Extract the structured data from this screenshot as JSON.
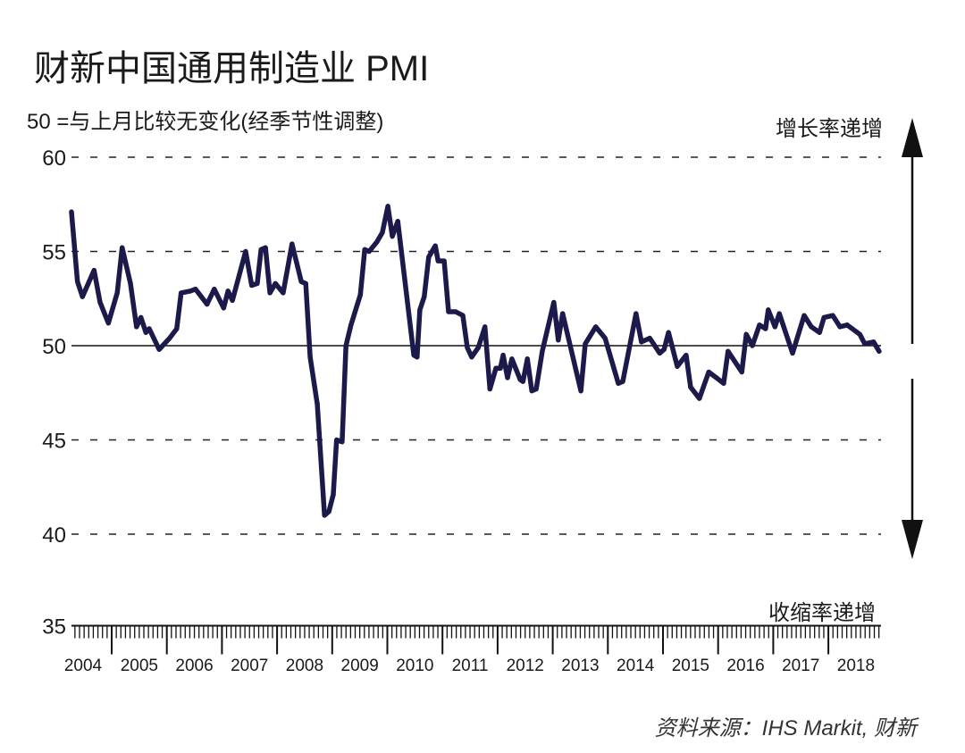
{
  "chart_data": {
    "type": "line",
    "title": "财新中国通用制造业 PMI",
    "subtitle": "50 =与上月比较无变化(经季节性调整)",
    "xlabel": "",
    "ylabel": "",
    "ylim": [
      35,
      60
    ],
    "yticks": [
      "60",
      "55",
      "50",
      "45",
      "40",
      "35"
    ],
    "ytick_values": [
      60,
      55,
      50,
      45,
      40,
      35
    ],
    "xlim": [
      2004,
      2019
    ],
    "xtick_labels": [
      "2004",
      "2005",
      "2006",
      "2007",
      "2008",
      "2009",
      "2010",
      "2011",
      "2012",
      "2013",
      "2014",
      "2015",
      "2016",
      "2017",
      "2018"
    ],
    "reference_line": 50,
    "grid": "dashed horizontal",
    "annotations": {
      "up": "增长率递增",
      "down": "收缩率递增"
    },
    "source": "资料来源：IHS Markit, 财新",
    "line_color": "#1c1a4a",
    "series": [
      {
        "name": "PMI",
        "x": [
          2004.27,
          2004.38,
          2004.47,
          2004.68,
          2004.79,
          2004.94,
          2005.1,
          2005.19,
          2005.34,
          2005.45,
          2005.53,
          2005.62,
          2005.68,
          2005.86,
          2006.05,
          2006.18,
          2006.26,
          2006.43,
          2006.52,
          2006.73,
          2006.86,
          2007.03,
          2007.11,
          2007.19,
          2007.43,
          2007.54,
          2007.64,
          2007.71,
          2007.79,
          2007.87,
          2007.97,
          2008.11,
          2008.27,
          2008.44,
          2008.52,
          2008.6,
          2008.73,
          2008.86,
          2008.94,
          2009.02,
          2009.08,
          2009.18,
          2009.25,
          2009.34,
          2009.51,
          2009.59,
          2009.67,
          2009.81,
          2009.91,
          2010.01,
          2010.09,
          2010.19,
          2010.48,
          2010.54,
          2010.59,
          2010.67,
          2010.75,
          2010.87,
          2010.92,
          2011.03,
          2011.11,
          2011.24,
          2011.37,
          2011.45,
          2011.53,
          2011.65,
          2011.77,
          2011.86,
          2011.97,
          2012.05,
          2012.1,
          2012.18,
          2012.26,
          2012.41,
          2012.46,
          2012.54,
          2012.62,
          2012.7,
          2012.81,
          2013.02,
          2013.1,
          2013.18,
          2013.51,
          2013.59,
          2013.78,
          2013.95,
          2014.19,
          2014.27,
          2014.51,
          2014.61,
          2014.76,
          2014.94,
          2015.02,
          2015.1,
          2015.26,
          2015.42,
          2015.5,
          2015.66,
          2015.83,
          2015.97,
          2016.1,
          2016.18,
          2016.43,
          2016.51,
          2016.62,
          2016.75,
          2016.86,
          2016.91,
          2017.03,
          2017.11,
          2017.35,
          2017.56,
          2017.69,
          2017.84,
          2017.92,
          2018.08,
          2018.21,
          2018.34,
          2018.57,
          2018.66,
          2018.82,
          2018.92
        ],
        "y": [
          57.1,
          53.4,
          52.6,
          54.0,
          52.3,
          51.2,
          52.8,
          55.2,
          53.3,
          51.0,
          51.5,
          50.7,
          50.9,
          49.8,
          50.4,
          50.9,
          52.8,
          52.9,
          53.0,
          52.2,
          53.0,
          52.0,
          52.9,
          52.4,
          55.0,
          53.2,
          53.3,
          55.1,
          55.2,
          52.8,
          53.3,
          52.8,
          55.4,
          53.4,
          53.3,
          49.4,
          46.9,
          41.0,
          41.2,
          42.1,
          45.0,
          44.9,
          50.0,
          51.1,
          52.7,
          55.1,
          55.0,
          55.5,
          56.0,
          57.4,
          55.8,
          56.6,
          49.5,
          49.4,
          51.9,
          52.6,
          54.7,
          55.3,
          54.5,
          54.5,
          51.8,
          51.8,
          51.6,
          49.9,
          49.4,
          49.9,
          51.0,
          47.7,
          48.8,
          48.8,
          49.5,
          48.3,
          49.3,
          48.2,
          48.1,
          49.3,
          47.6,
          47.7,
          49.7,
          52.3,
          50.3,
          51.7,
          47.6,
          50.1,
          51.0,
          50.4,
          48.0,
          48.1,
          51.7,
          50.2,
          50.4,
          49.6,
          49.8,
          50.7,
          48.9,
          49.5,
          47.8,
          47.2,
          48.6,
          48.3,
          48.0,
          49.7,
          48.6,
          50.6,
          50.0,
          51.1,
          50.9,
          51.9,
          51.0,
          51.7,
          49.6,
          51.6,
          51.0,
          50.7,
          51.5,
          51.6,
          51.0,
          51.1,
          50.6,
          50.1,
          50.2,
          49.7
        ]
      }
    ]
  }
}
